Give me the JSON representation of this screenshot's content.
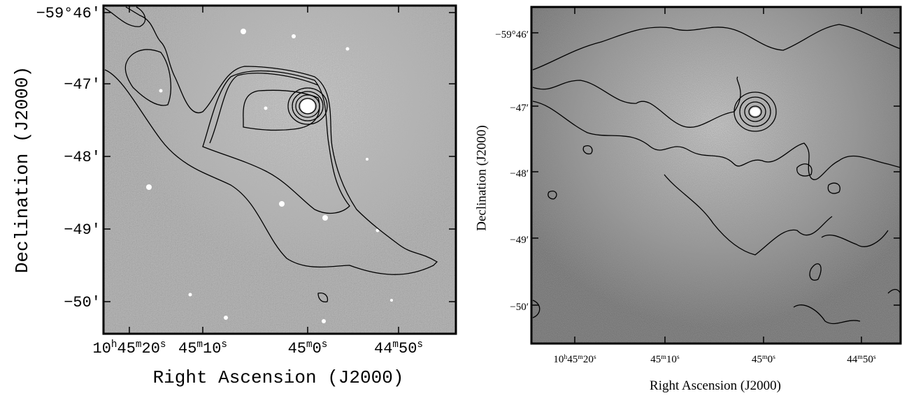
{
  "panels": [
    {
      "y_label": "Declination (J2000)",
      "x_label": "Right Ascension (J2000)",
      "y_ticks": [
        "−59°46′",
        "−47′",
        "−48′",
        "−49′",
        "−50′"
      ],
      "x_ticks": [
        "10h45m20s",
        "45m10s",
        "45m0s",
        "44m50s"
      ]
    },
    {
      "y_label": "Declination (J2000)",
      "x_label": "Right Ascension (J2000)",
      "y_ticks": [
        "−59°46′",
        "−47′",
        "−48′",
        "−49′",
        "−50′"
      ],
      "x_ticks": [
        "10h45m20s",
        "45m10s",
        "45m0s",
        "44m50s"
      ]
    }
  ]
}
